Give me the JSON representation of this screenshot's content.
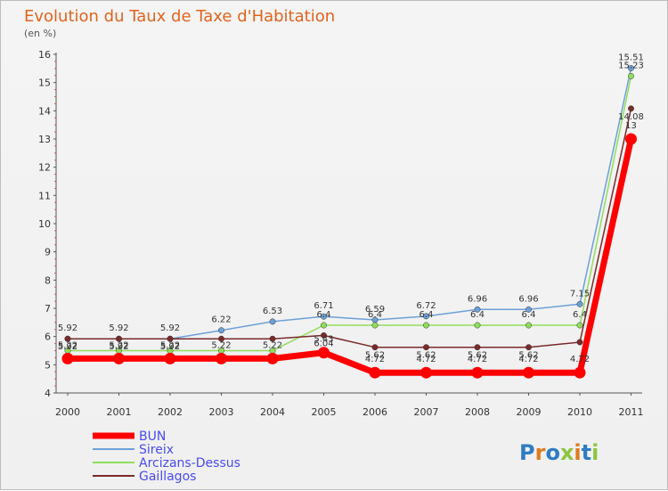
{
  "chart_data": {
    "type": "line",
    "title": "Evolution du Taux de Taxe d'Habitation",
    "unit_label": "(en %)",
    "categories": [
      "2000",
      "2001",
      "2002",
      "2003",
      "2004",
      "2005",
      "2006",
      "2007",
      "2008",
      "2009",
      "2010",
      "2011"
    ],
    "ylim": [
      4,
      16
    ],
    "yticks": [
      4,
      5,
      6,
      7,
      8,
      9,
      10,
      11,
      12,
      13,
      14,
      15,
      16
    ],
    "grid": false,
    "legend_position": "bottom-left",
    "series": [
      {
        "name": "BUN",
        "color": "#ff0000",
        "values": [
          5.22,
          5.22,
          5.22,
          5.22,
          5.22,
          5.43,
          4.72,
          4.72,
          4.72,
          4.72,
          4.72,
          13
        ],
        "labels": [
          "5.22",
          "5.22",
          "5.22",
          "5.22",
          "5.22",
          "5.43",
          "4.72",
          "4.72",
          "4.72",
          "4.72",
          "4.72",
          "13"
        ]
      },
      {
        "name": "Sireix",
        "color": "#6ca0d8",
        "values": [
          5.92,
          5.92,
          5.92,
          6.22,
          6.53,
          6.71,
          6.59,
          6.72,
          6.96,
          6.96,
          7.15,
          15.51
        ],
        "labels": [
          "5.92",
          "5.92",
          "5.92",
          "6.22",
          "6.53",
          "6.71",
          "6.59",
          "6.72",
          "6.96",
          "6.96",
          "7.15",
          "15.51"
        ]
      },
      {
        "name": "Arcizans-Dessus",
        "color": "#8fde5a",
        "values": [
          5.5,
          5.5,
          5.5,
          5.5,
          5.5,
          6.4,
          6.4,
          6.4,
          6.4,
          6.4,
          6.4,
          15.23
        ],
        "labels": [
          "",
          "",
          "",
          "",
          "",
          "6.4",
          "6.4",
          "6.4",
          "6.4",
          "6.4",
          "6.4",
          "15.23"
        ]
      },
      {
        "name": "Gaillagos",
        "color": "#7a2a2a",
        "values": [
          5.92,
          5.92,
          5.92,
          5.92,
          5.92,
          6.04,
          5.62,
          5.62,
          5.62,
          5.62,
          5.8,
          14.08
        ],
        "labels": [
          "5.92",
          "5.92",
          "5.92",
          "",
          "",
          "6.04",
          "5.62",
          "5.62",
          "5.62",
          "5.62",
          "",
          "14.08"
        ]
      }
    ]
  },
  "brand": {
    "text": "Proxiti"
  }
}
